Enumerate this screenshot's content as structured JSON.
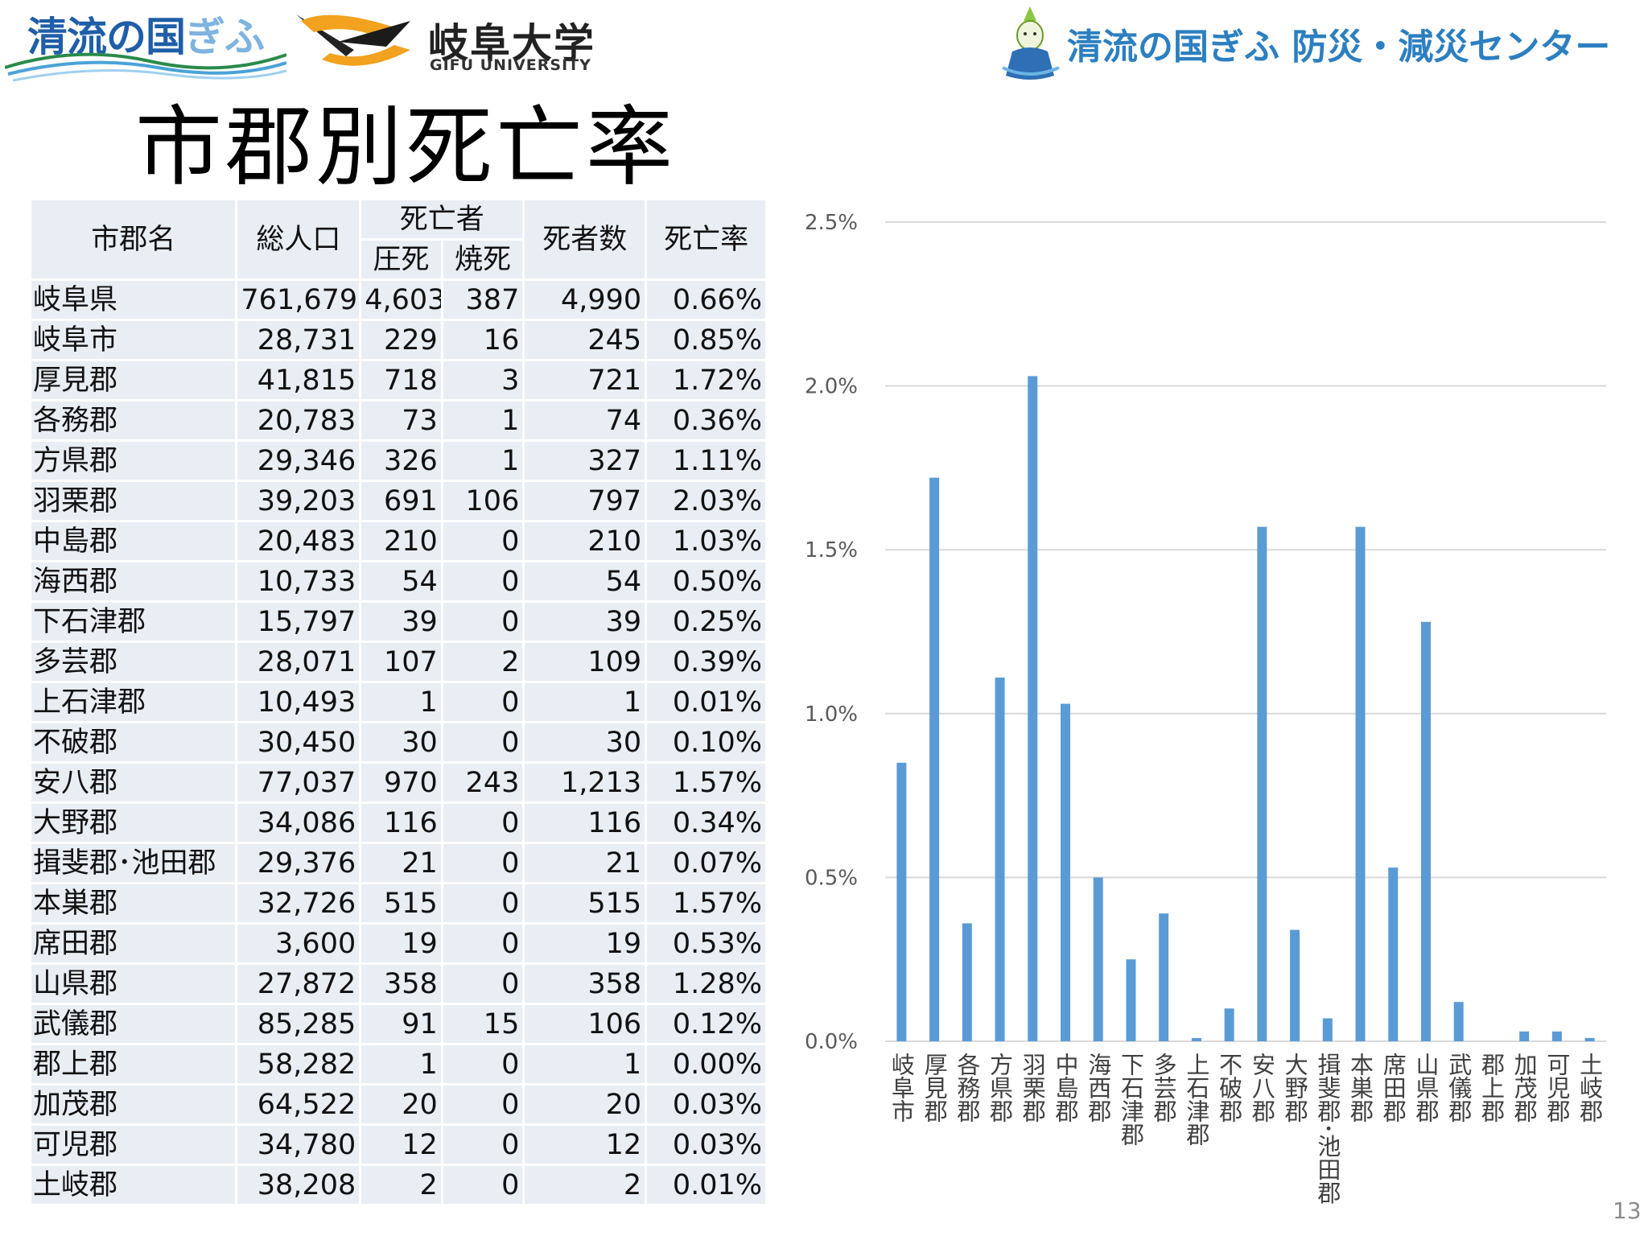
{
  "header": {
    "logo_seiryu_main": "清流の国",
    "logo_seiryu_tail": "ぎふ",
    "logo_gifu_name": "岐阜大学",
    "logo_gifu_sub": "GIFU UNIVERSITY",
    "center_title": "清流の国ぎふ 防災・減災センター",
    "accent_color": "#2c7fc0"
  },
  "page_title": "市郡別死亡率",
  "page_number": "13",
  "table": {
    "headers": {
      "name": "市郡名",
      "population": "総人口",
      "deaths_group": "死亡者",
      "crushed": "圧死",
      "burned": "焼死",
      "total": "死者数",
      "rate": "死亡率"
    },
    "rows": [
      {
        "name": "岐阜県",
        "population": "761,679",
        "crushed": "4,603",
        "burned": "387",
        "total": "4,990",
        "rate": "0.66%"
      },
      {
        "name": "岐阜市",
        "population": "28,731",
        "crushed": "229",
        "burned": "16",
        "total": "245",
        "rate": "0.85%"
      },
      {
        "name": "厚見郡",
        "population": "41,815",
        "crushed": "718",
        "burned": "3",
        "total": "721",
        "rate": "1.72%"
      },
      {
        "name": "各務郡",
        "population": "20,783",
        "crushed": "73",
        "burned": "1",
        "total": "74",
        "rate": "0.36%"
      },
      {
        "name": "方県郡",
        "population": "29,346",
        "crushed": "326",
        "burned": "1",
        "total": "327",
        "rate": "1.11%"
      },
      {
        "name": "羽栗郡",
        "population": "39,203",
        "crushed": "691",
        "burned": "106",
        "total": "797",
        "rate": "2.03%"
      },
      {
        "name": "中島郡",
        "population": "20,483",
        "crushed": "210",
        "burned": "0",
        "total": "210",
        "rate": "1.03%"
      },
      {
        "name": "海西郡",
        "population": "10,733",
        "crushed": "54",
        "burned": "0",
        "total": "54",
        "rate": "0.50%"
      },
      {
        "name": "下石津郡",
        "population": "15,797",
        "crushed": "39",
        "burned": "0",
        "total": "39",
        "rate": "0.25%"
      },
      {
        "name": "多芸郡",
        "population": "28,071",
        "crushed": "107",
        "burned": "2",
        "total": "109",
        "rate": "0.39%"
      },
      {
        "name": "上石津郡",
        "population": "10,493",
        "crushed": "1",
        "burned": "0",
        "total": "1",
        "rate": "0.01%"
      },
      {
        "name": "不破郡",
        "population": "30,450",
        "crushed": "30",
        "burned": "0",
        "total": "30",
        "rate": "0.10%"
      },
      {
        "name": "安八郡",
        "population": "77,037",
        "crushed": "970",
        "burned": "243",
        "total": "1,213",
        "rate": "1.57%"
      },
      {
        "name": "大野郡",
        "population": "34,086",
        "crushed": "116",
        "burned": "0",
        "total": "116",
        "rate": "0.34%"
      },
      {
        "name": "揖斐郡･池田郡",
        "population": "29,376",
        "crushed": "21",
        "burned": "0",
        "total": "21",
        "rate": "0.07%",
        "wrap": true
      },
      {
        "name": "本巣郡",
        "population": "32,726",
        "crushed": "515",
        "burned": "0",
        "total": "515",
        "rate": "1.57%"
      },
      {
        "name": "席田郡",
        "population": "3,600",
        "crushed": "19",
        "burned": "0",
        "total": "19",
        "rate": "0.53%"
      },
      {
        "name": "山県郡",
        "population": "27,872",
        "crushed": "358",
        "burned": "0",
        "total": "358",
        "rate": "1.28%"
      },
      {
        "name": "武儀郡",
        "population": "85,285",
        "crushed": "91",
        "burned": "15",
        "total": "106",
        "rate": "0.12%"
      },
      {
        "name": "郡上郡",
        "population": "58,282",
        "crushed": "1",
        "burned": "0",
        "total": "1",
        "rate": "0.00%"
      },
      {
        "name": "加茂郡",
        "population": "64,522",
        "crushed": "20",
        "burned": "0",
        "total": "20",
        "rate": "0.03%"
      },
      {
        "name": "可児郡",
        "population": "34,780",
        "crushed": "12",
        "burned": "0",
        "total": "12",
        "rate": "0.03%"
      },
      {
        "name": "土岐郡",
        "population": "38,208",
        "crushed": "2",
        "burned": "0",
        "total": "2",
        "rate": "0.01%"
      }
    ]
  },
  "chart_data": {
    "type": "bar",
    "title": "",
    "xlabel": "",
    "ylabel": "",
    "categories": [
      "岐阜市",
      "厚見郡",
      "各務郡",
      "方県郡",
      "羽栗郡",
      "中島郡",
      "海西郡",
      "下石津郡",
      "多芸郡",
      "上石津郡",
      "不破郡",
      "安八郡",
      "大野郡",
      "揖斐郡･池田郡",
      "本巣郡",
      "席田郡",
      "山県郡",
      "武儀郡",
      "郡上郡",
      "加茂郡",
      "可児郡",
      "土岐郡"
    ],
    "values": [
      0.85,
      1.72,
      0.36,
      1.11,
      2.03,
      1.03,
      0.5,
      0.25,
      0.39,
      0.01,
      0.1,
      1.57,
      0.34,
      0.07,
      1.57,
      0.53,
      1.28,
      0.12,
      0.0,
      0.03,
      0.03,
      0.01
    ],
    "ylim": [
      0,
      2.5
    ],
    "yticks": [
      0,
      0.5,
      1.0,
      1.5,
      2.0,
      2.5
    ],
    "ytick_labels": [
      "0.0%",
      "0.5%",
      "1.0%",
      "1.5%",
      "2.0%",
      "2.5%"
    ],
    "grid": true,
    "legend": "none",
    "bar_color": "#5b9bd5",
    "grid_color": "#d9d9d9"
  }
}
